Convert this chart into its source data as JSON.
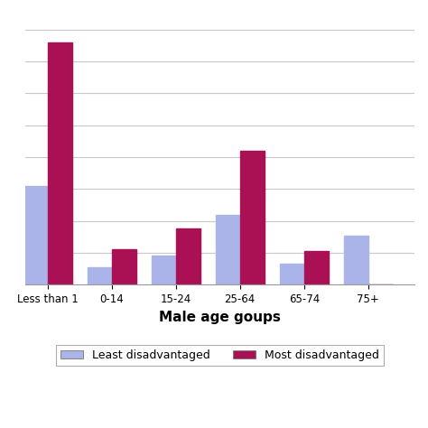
{
  "categories": [
    "Less than 1",
    "0-14",
    "15-24",
    "25-64",
    "65-74",
    "75+"
  ],
  "least_disadvantaged": [
    310,
    55,
    90,
    220,
    65,
    155
  ],
  "most_disadvantaged": [
    760,
    110,
    175,
    420,
    105,
    0
  ],
  "bar_color_least": "#aab4e8",
  "bar_color_most": "#aa1155",
  "xlabel": "Male age goups",
  "legend_labels": [
    "Least disadvantaged",
    "Most disadvantaged"
  ],
  "grid_color": "#c8c8c8",
  "background_color": "#ffffff",
  "ylim": [
    0,
    850
  ],
  "bar_width": 0.38
}
